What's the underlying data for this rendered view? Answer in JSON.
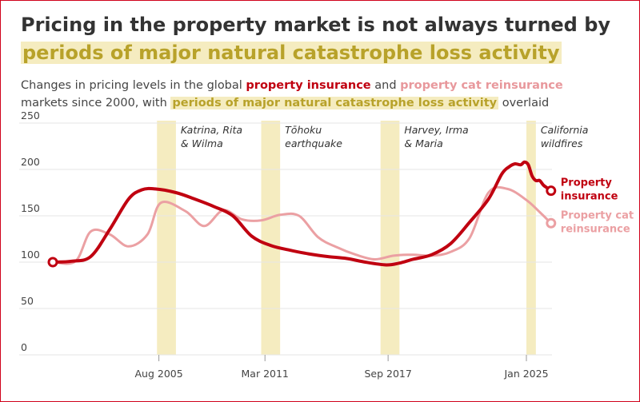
{
  "title": {
    "line1": "Pricing in the property market is not always turned by",
    "line2": "periods of major natural catastrophe loss activity"
  },
  "subtitle": {
    "part1": "Changes in pricing levels in the global ",
    "series1": "property insurance",
    "part2": " and ",
    "series2": "property cat reinsurance",
    "part3": " markets since 2000, with ",
    "highlight": "periods of major natural catastrophe loss activity",
    "part4": " overlaid"
  },
  "colors": {
    "property": "#c00010",
    "cat": "#eba0a3",
    "band": "#f5ecc0",
    "frame": "#d0021b"
  },
  "chart_data": {
    "type": "line",
    "x_range": [
      1998.5,
      2026.9
    ],
    "ylim": [
      0,
      260
    ],
    "yticks": [
      0,
      50,
      100,
      150,
      200,
      250
    ],
    "xticks": [
      {
        "label": "Aug 2005",
        "x": 2005.6
      },
      {
        "label": "Mar 2011",
        "x": 2011.2
      },
      {
        "label": "Sep 2017",
        "x": 2017.7
      },
      {
        "label": "Jan 2025",
        "x": 2025.0
      }
    ],
    "bands": [
      {
        "label": "Katrina, Rita\n& Wilma",
        "start": 2005.5,
        "end": 2006.5
      },
      {
        "label": "Tōhoku\nearthquake",
        "start": 2011.0,
        "end": 2012.0
      },
      {
        "label": "Harvey, Irma\n& Maria",
        "start": 2017.3,
        "end": 2018.3
      },
      {
        "label": "California\nwildfires",
        "start": 2025.0,
        "end": 2025.5
      }
    ],
    "series": [
      {
        "name": "Property insurance",
        "key": "property",
        "points": [
          [
            2000.0,
            100
          ],
          [
            2001.0,
            101
          ],
          [
            2002.0,
            106
          ],
          [
            2003.0,
            135
          ],
          [
            2004.0,
            168
          ],
          [
            2004.7,
            178
          ],
          [
            2005.4,
            179
          ],
          [
            2006.5,
            175
          ],
          [
            2007.5,
            168
          ],
          [
            2008.5,
            160
          ],
          [
            2009.5,
            150
          ],
          [
            2010.5,
            128
          ],
          [
            2011.5,
            118
          ],
          [
            2012.5,
            113
          ],
          [
            2013.5,
            109
          ],
          [
            2014.5,
            106
          ],
          [
            2015.5,
            104
          ],
          [
            2016.5,
            100
          ],
          [
            2017.6,
            97
          ],
          [
            2018.3,
            99
          ],
          [
            2019.0,
            103
          ],
          [
            2020.0,
            108
          ],
          [
            2021.0,
            120
          ],
          [
            2022.0,
            143
          ],
          [
            2023.0,
            168
          ],
          [
            2023.7,
            195
          ],
          [
            2024.1,
            203
          ],
          [
            2024.4,
            206
          ],
          [
            2024.7,
            205
          ],
          [
            2024.9,
            208
          ],
          [
            2025.1,
            205
          ],
          [
            2025.3,
            193
          ],
          [
            2025.5,
            188
          ],
          [
            2025.7,
            188
          ],
          [
            2025.9,
            183
          ],
          [
            2026.1,
            180
          ],
          [
            2026.3,
            177
          ]
        ]
      },
      {
        "name": "Property cat\nreinsurance",
        "key": "cat",
        "points": [
          [
            2000.0,
            100
          ],
          [
            2001.2,
            101
          ],
          [
            2002.0,
            133
          ],
          [
            2003.0,
            130
          ],
          [
            2004.0,
            117
          ],
          [
            2005.0,
            130
          ],
          [
            2005.7,
            164
          ],
          [
            2007.0,
            155
          ],
          [
            2008.0,
            139
          ],
          [
            2009.0,
            156
          ],
          [
            2010.0,
            146
          ],
          [
            2011.0,
            145
          ],
          [
            2012.0,
            151
          ],
          [
            2013.0,
            150
          ],
          [
            2014.0,
            127
          ],
          [
            2015.0,
            116
          ],
          [
            2016.0,
            108
          ],
          [
            2017.0,
            103
          ],
          [
            2018.0,
            107
          ],
          [
            2019.0,
            108
          ],
          [
            2020.0,
            107
          ],
          [
            2021.0,
            111
          ],
          [
            2022.0,
            126
          ],
          [
            2023.0,
            175
          ],
          [
            2024.0,
            179
          ],
          [
            2025.0,
            167
          ],
          [
            2025.7,
            154
          ],
          [
            2026.3,
            142
          ]
        ]
      }
    ]
  }
}
